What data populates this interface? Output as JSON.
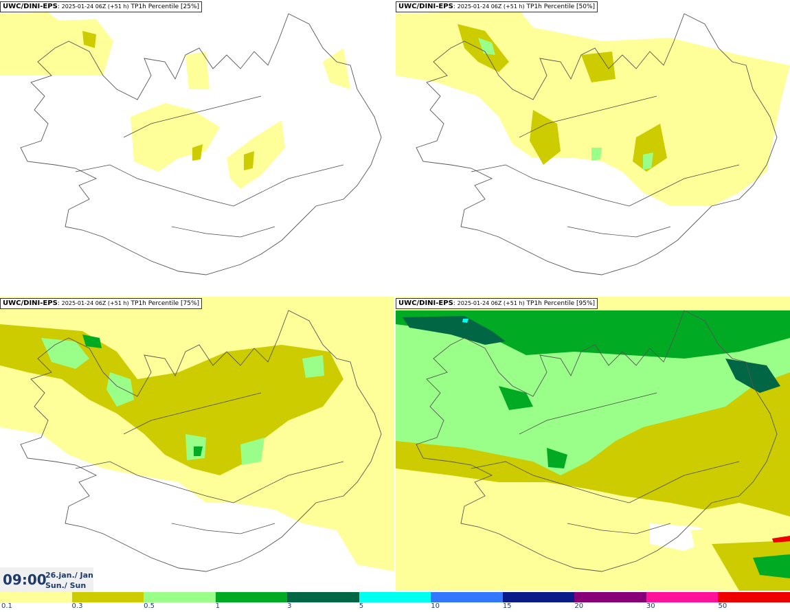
{
  "panels": [
    {
      "id": "p25",
      "source": "UWC/DINI-EPS",
      "meta": "2025-01-24 06Z (+51 h)",
      "label": "TP1h Percentile [25%]"
    },
    {
      "id": "p50",
      "source": "UWC/DINI-EPS",
      "meta": "2025-01-24 06Z (+51 h)",
      "label": "TP1h Percentile [50%]"
    },
    {
      "id": "p75",
      "source": "UWC/DINI-EPS",
      "meta": "2025-01-24 06Z (+51 h)",
      "label": "TP1h Percentile [75%]"
    },
    {
      "id": "p95",
      "source": "UWC/DINI-EPS",
      "meta": "2025-01-24 06Z (+51 h)",
      "label": "TP1h Percentile [95%]"
    }
  ],
  "valid_time": {
    "time": "09:00",
    "date_line1": "26.jan./ Jan",
    "date_line2": "Sun./ Sun"
  },
  "legend": {
    "colors": [
      "#ffff99",
      "#cccc00",
      "#99ff88",
      "#00aa22",
      "#006644",
      "#00ffee",
      "#3377ff",
      "#0a1a88",
      "#880077",
      "#ff1199",
      "#ee0000"
    ],
    "labels": [
      "0.1",
      "0.3",
      "0.5",
      "1",
      "3",
      "5",
      "10",
      "15",
      "20",
      "30",
      "50"
    ]
  }
}
